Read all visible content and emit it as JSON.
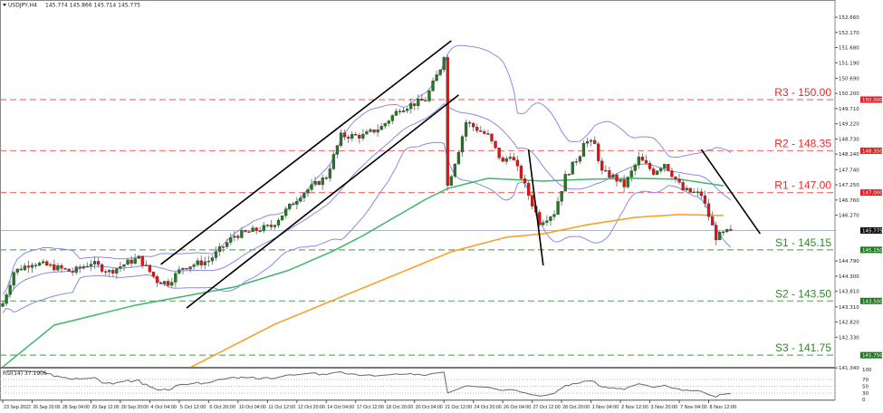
{
  "header": {
    "symbol": "USDJPY,H4",
    "ohlc": "145.774 145.866 145.714 145.775"
  },
  "chart_data": {
    "type": "candlestick",
    "symbol": "USDJPY",
    "timeframe": "H4",
    "ylim": [
      141.34,
      152.66
    ],
    "grid": false,
    "current_price": 145.775,
    "current_price_label": "145.775",
    "y_ticks": [
      "152.660",
      "152.170",
      "151.680",
      "151.190",
      "150.690",
      "150.200",
      "149.710",
      "149.220",
      "148.730",
      "148.240",
      "147.740",
      "147.250",
      "146.760",
      "146.270",
      "144.790",
      "144.300",
      "143.810",
      "143.310",
      "142.820",
      "142.330",
      "141.340"
    ],
    "x_ticks": [
      {
        "bar": 0,
        "label": "23 Sep 2022"
      },
      {
        "bar": 8,
        "label": "26 Sep 20:00"
      },
      {
        "bar": 16,
        "label": "28 Sep 04:00"
      },
      {
        "bar": 24,
        "label": "29 Sep 12:00"
      },
      {
        "bar": 32,
        "label": "30 Sep 20:00"
      },
      {
        "bar": 40,
        "label": "4 Oct 04:00"
      },
      {
        "bar": 48,
        "label": "5 Oct 12:00"
      },
      {
        "bar": 56,
        "label": "6 Oct 20:00"
      },
      {
        "bar": 64,
        "label": "10 Oct 04:00"
      },
      {
        "bar": 72,
        "label": "11 Oct 12:00"
      },
      {
        "bar": 80,
        "label": "12 Oct 20:00"
      },
      {
        "bar": 88,
        "label": "14 Oct 04:00"
      },
      {
        "bar": 96,
        "label": "17 Oct 12:00"
      },
      {
        "bar": 104,
        "label": "18 Oct 20:00"
      },
      {
        "bar": 112,
        "label": "20 Oct 04:00"
      },
      {
        "bar": 120,
        "label": "21 Oct 12:00"
      },
      {
        "bar": 128,
        "label": "24 Oct 20:00"
      },
      {
        "bar": 136,
        "label": "26 Oct 04:00"
      },
      {
        "bar": 144,
        "label": "27 Oct 12:00"
      },
      {
        "bar": 152,
        "label": "28 Oct 20:00"
      },
      {
        "bar": 160,
        "label": "1 Nov 04:00"
      },
      {
        "bar": 168,
        "label": "2 Nov 12:00"
      },
      {
        "bar": 176,
        "label": "3 Nov 20:00"
      },
      {
        "bar": 184,
        "label": "7 Nov 04:00"
      },
      {
        "bar": 192,
        "label": "8 Nov 12:00"
      }
    ],
    "close_path": [
      [
        0,
        143.42
      ],
      [
        3,
        144.44
      ],
      [
        8,
        144.74
      ],
      [
        14,
        144.59
      ],
      [
        19,
        144.44
      ],
      [
        24,
        144.74
      ],
      [
        29,
        144.44
      ],
      [
        34,
        144.74
      ],
      [
        37,
        144.88
      ],
      [
        42,
        144.15
      ],
      [
        45,
        144.09
      ],
      [
        49,
        144.59
      ],
      [
        56,
        144.8
      ],
      [
        63,
        145.61
      ],
      [
        73,
        145.91
      ],
      [
        81,
        146.93
      ],
      [
        88,
        147.51
      ],
      [
        92,
        148.83
      ],
      [
        98,
        148.83
      ],
      [
        103,
        149.12
      ],
      [
        108,
        149.71
      ],
      [
        115,
        150.0
      ],
      [
        119,
        151.02
      ],
      [
        120,
        151.46
      ],
      [
        121,
        147.22
      ],
      [
        124,
        148.39
      ],
      [
        126,
        149.27
      ],
      [
        132,
        148.83
      ],
      [
        136,
        147.95
      ],
      [
        138,
        148.25
      ],
      [
        141,
        147.51
      ],
      [
        146,
        146.05
      ],
      [
        150,
        146.35
      ],
      [
        153,
        147.51
      ],
      [
        157,
        148.25
      ],
      [
        158,
        148.68
      ],
      [
        161,
        148.54
      ],
      [
        163,
        147.66
      ],
      [
        166,
        147.51
      ],
      [
        169,
        147.22
      ],
      [
        173,
        148.1
      ],
      [
        177,
        147.66
      ],
      [
        180,
        147.95
      ],
      [
        185,
        147.08
      ],
      [
        190,
        146.93
      ],
      [
        194,
        145.56
      ],
      [
        196,
        145.67
      ],
      [
        198,
        145.775
      ]
    ],
    "moving_average_green": [
      [
        0,
        141.37
      ],
      [
        14,
        142.72
      ],
      [
        36,
        143.36
      ],
      [
        63,
        143.95
      ],
      [
        78,
        144.5
      ],
      [
        90,
        145.12
      ],
      [
        98,
        145.61
      ],
      [
        115,
        146.78
      ],
      [
        121,
        147.13
      ],
      [
        132,
        147.46
      ],
      [
        147,
        147.37
      ],
      [
        159,
        147.43
      ],
      [
        172,
        147.46
      ],
      [
        184,
        147.43
      ],
      [
        196,
        147.22
      ]
    ],
    "moving_average_orange": [
      [
        28,
        140.5
      ],
      [
        49,
        141.23
      ],
      [
        74,
        142.75
      ],
      [
        98,
        143.92
      ],
      [
        122,
        145.09
      ],
      [
        137,
        145.56
      ],
      [
        147,
        145.67
      ],
      [
        159,
        145.96
      ],
      [
        172,
        146.2
      ],
      [
        184,
        146.29
      ],
      [
        196,
        146.26
      ]
    ],
    "bollinger": {
      "period": 20,
      "deviations": 2
    },
    "trendlines": [
      {
        "from": [
          43,
          144.68
        ],
        "to": [
          122,
          151.9
        ]
      },
      {
        "from": [
          50,
          143.27
        ],
        "to": [
          124,
          150.15
        ]
      },
      {
        "from": [
          143,
          148.39
        ],
        "to": [
          147,
          144.65
        ]
      },
      {
        "from": [
          190,
          148.39
        ],
        "to": [
          206,
          145.67
        ]
      }
    ],
    "levels": [
      {
        "price": 150.0,
        "label": "R3 - 150.00",
        "badge": "150.000",
        "type": "resistance"
      },
      {
        "price": 148.35,
        "label": "R2 - 148.35",
        "badge": "148.350",
        "type": "resistance"
      },
      {
        "price": 147.0,
        "label": "R1 - 147.00",
        "badge": "147.000",
        "type": "resistance"
      },
      {
        "price": 145.15,
        "label": "S1 - 145.15",
        "badge": "145.150",
        "type": "support"
      },
      {
        "price": 143.5,
        "label": "S2 - 143.50",
        "badge": "143.500",
        "type": "support"
      },
      {
        "price": 141.75,
        "label": "S3 - 141.75",
        "badge": "141.750",
        "type": "support"
      }
    ],
    "rsi": {
      "label": "RSI(14) 37.1906",
      "period": 14,
      "levels": [
        70,
        50,
        30
      ],
      "ticks": [
        "100",
        "70",
        "50",
        "30",
        "0"
      ]
    }
  },
  "colors": {
    "bull": "#1f7a1f",
    "bear": "#e81010",
    "wick": "#808080",
    "bands": "#8a8ae6",
    "ma_green": "#3cb86a",
    "ma_orange": "#ff9a1a",
    "resistance": "#f07878",
    "support": "#6aaa6a",
    "resistance_text": "#e82a2a",
    "support_text": "#2a8a2a",
    "current": "#111111"
  }
}
